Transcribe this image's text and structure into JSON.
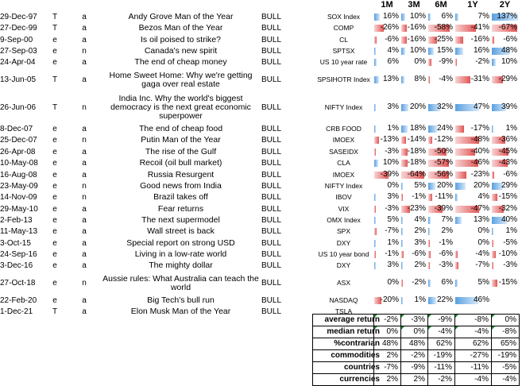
{
  "headers": [
    "1M",
    "3M",
    "6M",
    "1Y",
    "2Y"
  ],
  "rows": [
    {
      "date": "29-Dec-97",
      "type": "T",
      "ver": "a",
      "title": "Andy Grove Man of the Year",
      "sig": "BULL",
      "index": "SOX Index",
      "r": [
        "16%",
        "10%",
        "6%",
        "7%",
        "137%"
      ],
      "f": [
        0.16,
        0.1,
        0.06,
        0.07,
        1.37
      ]
    },
    {
      "date": "27-Dec-99",
      "type": "T",
      "ver": "a",
      "title": "Bezos Man of the Year",
      "sig": "BULL",
      "index": "COMP",
      "r": [
        "-26%",
        "-16%",
        "-58%",
        "-41%",
        "-67%"
      ],
      "f": [
        -0.26,
        -0.16,
        -0.58,
        -0.41,
        -0.67
      ]
    },
    {
      "date": "9-Sep-00",
      "type": "e",
      "ver": "a",
      "title": "Is oil poised to strike?",
      "sig": "BULL",
      "index": "CL",
      "r": [
        "-6%",
        "-16%",
        "-25%",
        "-16%",
        "-6%"
      ],
      "f": [
        -0.06,
        -0.16,
        -0.25,
        -0.16,
        -0.06
      ]
    },
    {
      "date": "27-Sep-03",
      "type": "e",
      "ver": "n",
      "title": "Canada's new spirit",
      "sig": "BULL",
      "index": "SPTSX",
      "r": [
        "4%",
        "10%",
        "15%",
        "16%",
        "48%"
      ],
      "f": [
        0.04,
        0.1,
        0.15,
        0.16,
        0.48
      ]
    },
    {
      "date": "24-Apr-04",
      "type": "e",
      "ver": "a",
      "title": "The end of cheap money",
      "sig": "BULL",
      "index": "US 10 year rate",
      "r": [
        "6%",
        "0%",
        "-9%",
        "-2%",
        "10%"
      ],
      "f": [
        0.06,
        0,
        -0.09,
        -0.02,
        0.1
      ]
    },
    {
      "date": "13-Jun-05",
      "type": "T",
      "ver": "a",
      "title": "Home Sweet Home: Why we're getting gaga over real estate",
      "sig": "BULL",
      "index": "SPSIHOTR Index",
      "r": [
        "13%",
        "8%",
        "-4%",
        "-31%",
        "-29%"
      ],
      "f": [
        0.13,
        0.08,
        -0.04,
        -0.31,
        -0.29
      ]
    },
    {
      "date": "26-Jun-06",
      "type": "T",
      "ver": "n",
      "title": "India Inc. Why the world's biggest democracy is the next great economic superpower",
      "sig": "BULL",
      "index": "NIFTY Index",
      "r": [
        "3%",
        "20%",
        "32%",
        "47%",
        "39%"
      ],
      "f": [
        0.03,
        0.2,
        0.32,
        0.47,
        0.39
      ]
    },
    {
      "date": "8-Dec-07",
      "type": "e",
      "ver": "a",
      "title": "The end of cheap food",
      "sig": "BULL",
      "index": "CRB FOOD",
      "r": [
        "1%",
        "18%",
        "24%",
        "-17%",
        "1%"
      ],
      "f": [
        0.01,
        0.18,
        0.24,
        -0.17,
        0.01
      ]
    },
    {
      "date": "25-Dec-07",
      "type": "e",
      "ver": "n",
      "title": "Putin Man of the Year",
      "sig": "BULL",
      "index": "IMOEX",
      "r": [
        "-13%",
        "-14%",
        "-12%",
        "-48%",
        "-36%"
      ],
      "f": [
        -0.13,
        -0.14,
        -0.12,
        -0.48,
        -0.36
      ]
    },
    {
      "date": "26-Apr-08",
      "type": "e",
      "ver": "a",
      "title": "The rise of the Gulf",
      "sig": "BULL",
      "index": "SASEIDX",
      "r": [
        "-3%",
        "-18%",
        "-50%",
        "-40%",
        "-45%"
      ],
      "f": [
        -0.03,
        -0.18,
        -0.5,
        -0.4,
        -0.45
      ]
    },
    {
      "date": "10-May-08",
      "type": "e",
      "ver": "a",
      "title": "Recoil (oil bull market)",
      "sig": "BULL",
      "index": "CLA",
      "r": [
        "10%",
        "-18%",
        "-57%",
        "-46%",
        "-43%"
      ],
      "f": [
        0.1,
        -0.18,
        -0.57,
        -0.46,
        -0.43
      ]
    },
    {
      "date": "16-Aug-08",
      "type": "e",
      "ver": "a",
      "title": "Russia Resurgent",
      "sig": "BULL",
      "index": "IMOEX",
      "r": [
        "-39%",
        "-64%",
        "-56%",
        "-23%",
        "-6%"
      ],
      "f": [
        -0.39,
        -0.64,
        -0.56,
        -0.23,
        -0.06
      ]
    },
    {
      "date": "23-May-09",
      "type": "e",
      "ver": "n",
      "title": "Good news from India",
      "sig": "BULL",
      "index": "NIFTY Index",
      "r": [
        "0%",
        "5%",
        "20%",
        "20%",
        "29%"
      ],
      "f": [
        0,
        0.05,
        0.2,
        0.2,
        0.29
      ]
    },
    {
      "date": "14-Nov-09",
      "type": "e",
      "ver": "n",
      "title": "Brazil takes off",
      "sig": "BULL",
      "index": "IBOV",
      "r": [
        "3%",
        "-1%",
        "-11%",
        "4%",
        "-15%"
      ],
      "f": [
        0.03,
        -0.01,
        -0.11,
        0.04,
        -0.15
      ]
    },
    {
      "date": "29-May-10",
      "type": "e",
      "ver": "a",
      "title": "Fear returns",
      "sig": "BULL",
      "index": "VIX",
      "r": [
        "-3%",
        "-23%",
        "-39%",
        "-47%",
        "-32%"
      ],
      "f": [
        -0.03,
        -0.23,
        -0.39,
        -0.47,
        -0.32
      ]
    },
    {
      "date": "2-Feb-13",
      "type": "e",
      "ver": "a",
      "title": "The next supermodel",
      "sig": "BULL",
      "index": "OMX Index",
      "r": [
        "5%",
        "4%",
        "7%",
        "13%",
        "40%"
      ],
      "f": [
        0.05,
        0.04,
        0.07,
        0.13,
        0.4
      ]
    },
    {
      "date": "11-May-13",
      "type": "e",
      "ver": "a",
      "title": "Wall street is back",
      "sig": "BULL",
      "index": "SPX",
      "r": [
        "-7%",
        "2%",
        "2%",
        "0%",
        "1%"
      ],
      "f": [
        -0.07,
        0.02,
        0.02,
        0,
        0.01
      ]
    },
    {
      "date": "3-Oct-15",
      "type": "e",
      "ver": "a",
      "title": "Special report on strong USD",
      "sig": "BULL",
      "index": "DXY",
      "r": [
        "1%",
        "3%",
        "-1%",
        "0%",
        "-5%"
      ],
      "f": [
        0.01,
        0.03,
        -0.01,
        0,
        -0.05
      ]
    },
    {
      "date": "24-Sep-16",
      "type": "e",
      "ver": "a",
      "title": "Living in a low-rate world",
      "sig": "BULL",
      "index": "US 10 year bond",
      "r": [
        "-1%",
        "-6%",
        "-6%",
        "-4%",
        "-10%"
      ],
      "f": [
        -0.01,
        -0.06,
        -0.06,
        -0.04,
        -0.1
      ]
    },
    {
      "date": "3-Dec-16",
      "type": "e",
      "ver": "a",
      "title": "The mighty dollar",
      "sig": "BULL",
      "index": "DXY",
      "r": [
        "3%",
        "2%",
        "-3%",
        "-7%",
        "-3%"
      ],
      "f": [
        0.03,
        0.02,
        -0.03,
        -0.07,
        -0.03
      ]
    },
    {
      "date": "27-Oct-18",
      "type": "e",
      "ver": "n",
      "title": "Aussie rules: What Australia can teach the world",
      "sig": "BULL",
      "index": "ASX",
      "r": [
        "0%",
        "-2%",
        "6%",
        "5%",
        "-15%"
      ],
      "f": [
        0,
        -0.02,
        0.06,
        0.05,
        -0.15
      ]
    },
    {
      "date": "22-Feb-20",
      "type": "e",
      "ver": "a",
      "title": "Big Tech's bull run",
      "sig": "BULL",
      "index": "NASDAQ",
      "r": [
        "-20%",
        "1%",
        "22%",
        "46%",
        ""
      ],
      "f": [
        -0.2,
        0.01,
        0.22,
        0.46,
        null
      ]
    },
    {
      "date": "1-Dec-21",
      "type": "T",
      "ver": "a",
      "title": "Elon Musk Man of the Year",
      "sig": "BULL",
      "index": "TSLA",
      "r": [
        "",
        "",
        "",
        "",
        ""
      ],
      "f": [
        null,
        null,
        null,
        null,
        null
      ]
    }
  ],
  "summary": [
    {
      "label": "average return",
      "v": [
        "-2%",
        "-3%",
        "-9%",
        "-8%",
        "0%"
      ]
    },
    {
      "label": "median return",
      "v": [
        "0%",
        "0%",
        "-4%",
        "-4%",
        "-8%"
      ]
    },
    {
      "label": "%contrarian",
      "v": [
        "48%",
        "48%",
        "62%",
        "62%",
        "65%"
      ]
    },
    {
      "label": "commodities",
      "v": [
        "2%",
        "-2%",
        "-19%",
        "-27%",
        "-19%"
      ]
    },
    {
      "label": "countries",
      "v": [
        "-7%",
        "-9%",
        "-11%",
        "-11%",
        "-5%"
      ]
    },
    {
      "label": "currencies",
      "v": [
        "2%",
        "2%",
        "-2%",
        "-4%",
        "-4%"
      ]
    }
  ]
}
